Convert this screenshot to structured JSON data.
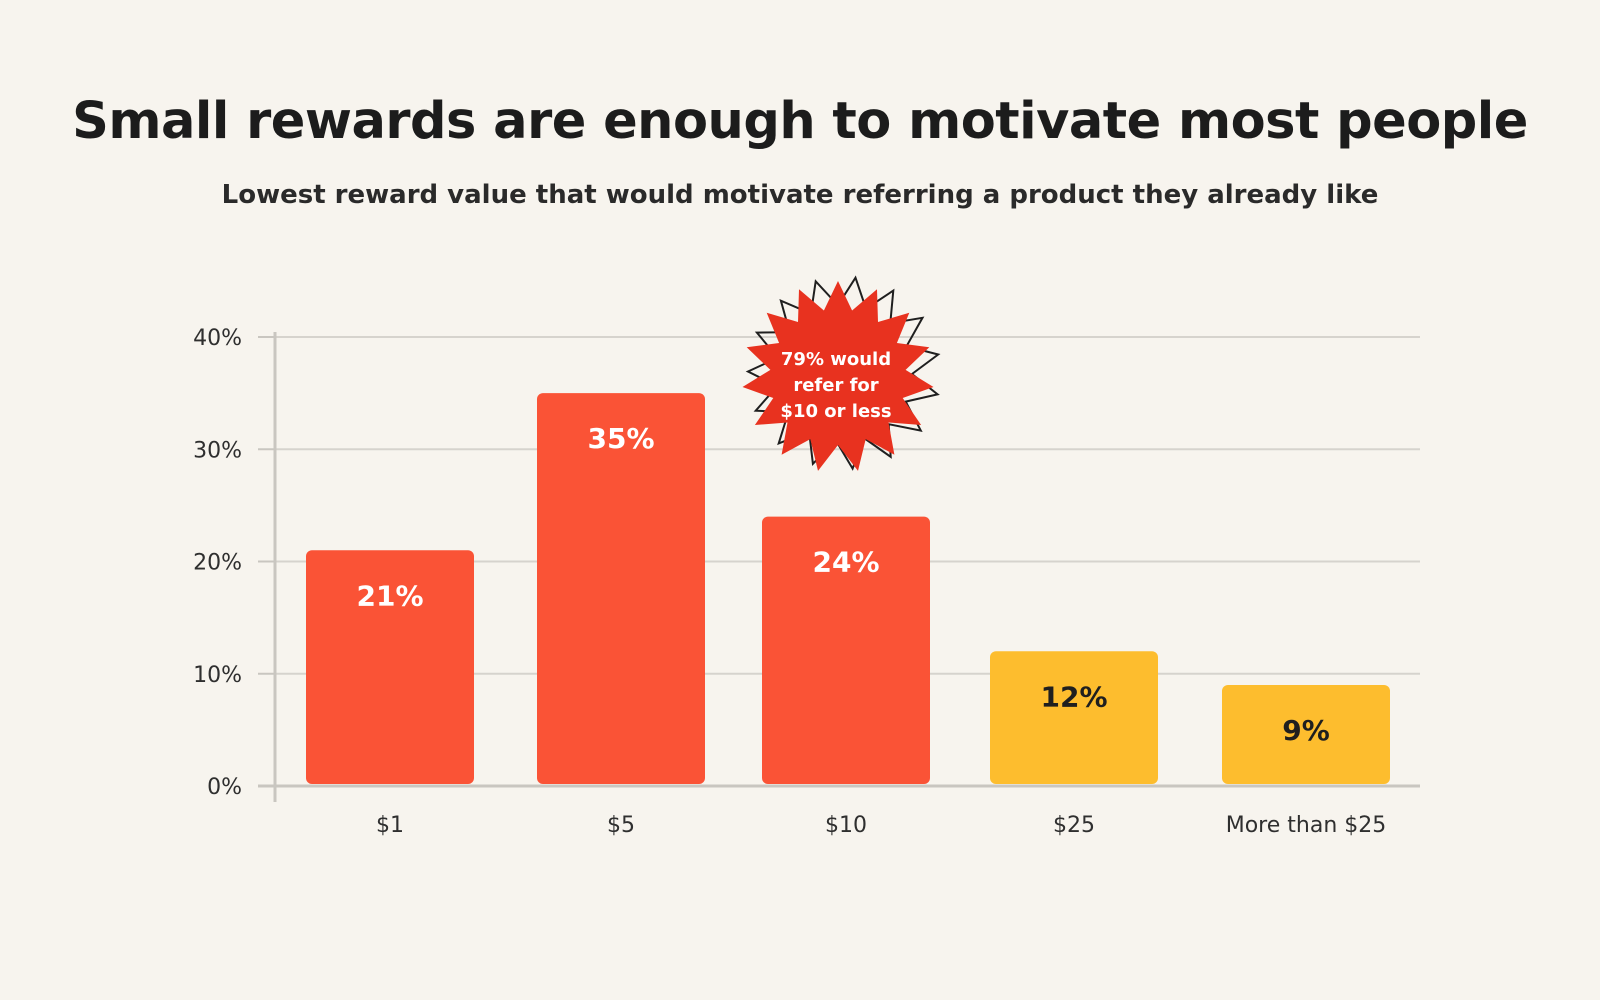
{
  "chart_data": {
    "type": "bar",
    "title": "Small rewards are enough to motivate most people",
    "subtitle": "Lowest reward value that would motivate referring a product they already like",
    "categories": [
      "$1",
      "$5",
      "$10",
      "$25",
      "More than $25"
    ],
    "values": [
      21,
      35,
      24,
      12,
      9
    ],
    "value_labels": [
      "21%",
      "35%",
      "24%",
      "12%",
      "9%"
    ],
    "ylim": [
      0,
      40
    ],
    "yticks": [
      0,
      10,
      20,
      30,
      40
    ],
    "ytick_labels": [
      "0%",
      "10%",
      "20%",
      "30%",
      "40%"
    ],
    "grid": true,
    "bar_colors": [
      "#fa5336",
      "#fa5336",
      "#fa5336",
      "#fdbd2e",
      "#fdbd2e"
    ],
    "label_colors": [
      "#ffffff",
      "#ffffff",
      "#ffffff",
      "#1f1f1f",
      "#1f1f1f"
    ],
    "annotation": {
      "lines": [
        "79% would",
        "refer for",
        "$10 or less"
      ],
      "color": "#e8321f"
    }
  }
}
